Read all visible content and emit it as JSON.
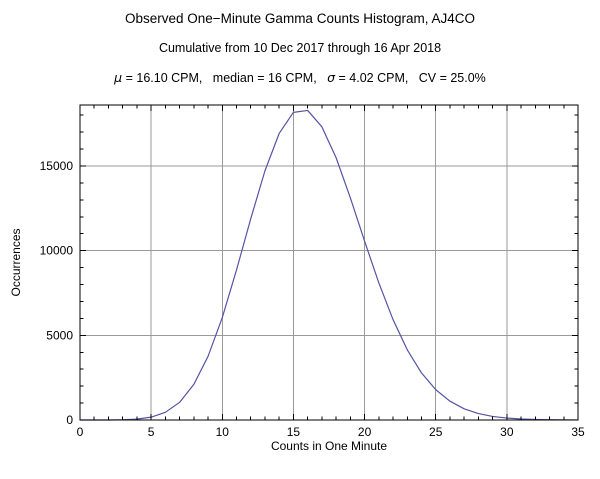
{
  "header": {
    "title": "Observed One−Minute Gamma Counts Histogram, AJ4CO",
    "subtitle": "Cumulative from 10 Dec 2017 through 16 Apr 2018",
    "stats": {
      "mu_symbol": "μ",
      "mu_rest": " = 16.10 CPM,   median = 16 CPM,   ",
      "sigma_symbol": "σ",
      "sigma_rest": " = 4.02 CPM,   CV = 25.0%"
    }
  },
  "chart_data": {
    "type": "line",
    "title": "Observed One−Minute Gamma Counts Histogram, AJ4CO",
    "subtitle": "Cumulative from 10 Dec 2017 through 16 Apr 2018",
    "xlabel": "Counts in One Minute",
    "ylabel": "Occurrences",
    "x": [
      0,
      1,
      2,
      3,
      4,
      5,
      6,
      7,
      8,
      9,
      10,
      11,
      12,
      13,
      14,
      15,
      16,
      17,
      18,
      19,
      20,
      21,
      22,
      23,
      24,
      25,
      26,
      27,
      28,
      29,
      30,
      31,
      32,
      33,
      34,
      35
    ],
    "y": [
      0,
      0,
      2,
      13,
      53,
      169,
      454,
      1044,
      2102,
      3760,
      6049,
      8862,
      11881,
      14718,
      16926,
      18166,
      18279,
      17311,
      15485,
      13122,
      10563,
      8099,
      5931,
      4145,
      2781,
      1792,
      1110,
      662,
      381,
      212,
      113,
      59,
      30,
      15,
      7,
      3
    ],
    "series_name": "occurrences",
    "xlim": [
      0,
      35
    ],
    "ylim": [
      0,
      18600
    ],
    "xticks": [
      0,
      5,
      10,
      15,
      20,
      25,
      30,
      35
    ],
    "yticks": [
      0,
      5000,
      10000,
      15000
    ],
    "x_minor_step": 1,
    "y_minor_step": 1000,
    "grid": true,
    "legend": "none",
    "line_color": "#5454a4",
    "grid_color": "#9a9a9a",
    "frame_color": "#000000",
    "stats_annotation": "μ = 16.10 CPM,   median = 16 CPM,   σ = 4.02 CPM,   CV = 25.0%"
  }
}
